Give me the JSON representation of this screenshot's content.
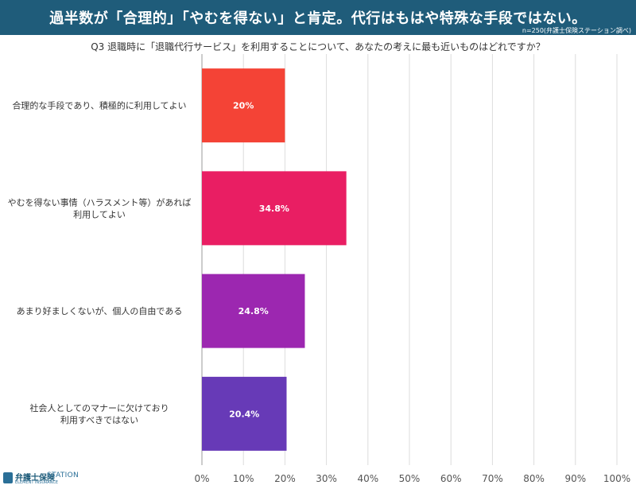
{
  "header": {
    "title": "過半数が「合理的」「やむを得ない」と肯定。代行はもはや特殊な手段ではない。"
  },
  "source": "n=250(弁護士保険ステーション調べ)",
  "question": "Q3 退職時に「退職代行サービス」を利用することについて、あなたの考えに最も近いものはどれですか？",
  "brand": {
    "name": "弁護士保険",
    "station": "STATION",
    "sub": "ELEMENT INSURANCE"
  },
  "chart_data": {
    "type": "bar",
    "orientation": "horizontal",
    "categories": [
      "合理的な手段であり、積極的に利用してよい",
      "やむを得ない事情（ハラスメント等）があれば\n利用してよい",
      "あまり好ましくないが、個人の自由である",
      "社会人としてのマナーに欠けており\n利用すべきではない"
    ],
    "values": [
      20,
      34.8,
      24.8,
      20.4
    ],
    "value_labels": [
      "20%",
      "34.8%",
      "24.8%",
      "20.4%"
    ],
    "colors": [
      "#f44336",
      "#e91e63",
      "#9c27b0",
      "#673ab7"
    ],
    "xlim": [
      0,
      100
    ],
    "xticks": [
      "0%",
      "10%",
      "20%",
      "30%",
      "40%",
      "50%",
      "60%",
      "70%",
      "80%",
      "90%",
      "100%"
    ],
    "grid": true
  }
}
